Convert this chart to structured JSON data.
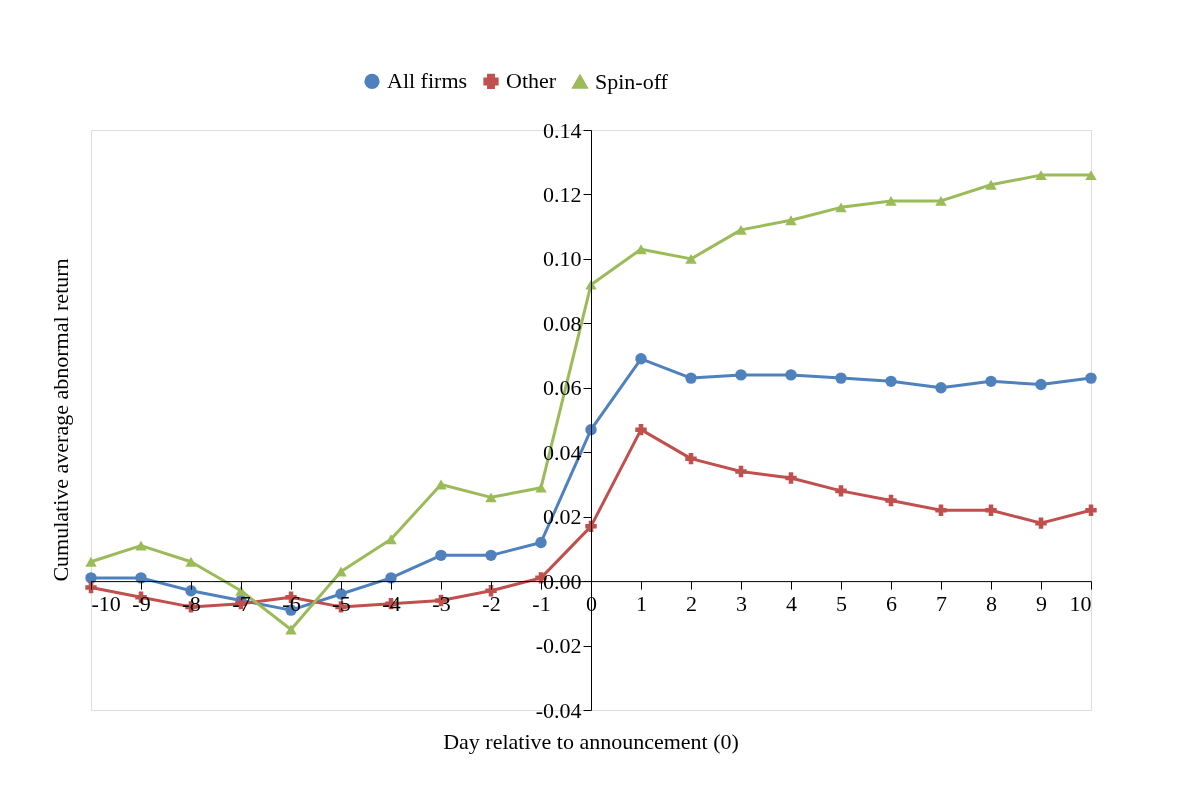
{
  "chart_data": {
    "type": "line",
    "xlabel": "Day relative to announcement (0)",
    "ylabel": "Cumulative average abnormal return",
    "x": [
      -10,
      -9,
      -8,
      -7,
      -6,
      -5,
      -4,
      -3,
      -2,
      -1,
      0,
      1,
      2,
      3,
      4,
      5,
      6,
      7,
      8,
      9,
      10
    ],
    "series": [
      {
        "name": "All firms",
        "color": "#4f81bd",
        "marker": "circle",
        "values": [
          0.001,
          0.001,
          -0.003,
          -0.006,
          -0.009,
          -0.004,
          0.001,
          0.008,
          0.008,
          0.012,
          0.047,
          0.069,
          0.063,
          0.064,
          0.064,
          0.063,
          0.062,
          0.06,
          0.062,
          0.061,
          0.063
        ]
      },
      {
        "name": "Other",
        "color": "#c0504d",
        "marker": "cross",
        "values": [
          -0.002,
          -0.005,
          -0.008,
          -0.007,
          -0.005,
          -0.008,
          -0.007,
          -0.006,
          -0.003,
          0.001,
          0.017,
          0.047,
          0.038,
          0.034,
          0.032,
          0.028,
          0.025,
          0.022,
          0.022,
          0.018,
          0.022
        ]
      },
      {
        "name": "Spin-off",
        "color": "#9bbb59",
        "marker": "triangle",
        "values": [
          0.006,
          0.011,
          0.006,
          -0.003,
          -0.015,
          0.003,
          0.013,
          0.03,
          0.026,
          0.029,
          0.092,
          0.103,
          0.1,
          0.109,
          0.112,
          0.116,
          0.118,
          0.118,
          0.123,
          0.126,
          0.126
        ]
      }
    ],
    "xlim": [
      -10,
      10
    ],
    "xticks": [
      -10,
      -9,
      -8,
      -7,
      -6,
      -5,
      -4,
      -3,
      -2,
      -1,
      0,
      1,
      2,
      3,
      4,
      5,
      6,
      7,
      8,
      9,
      10
    ],
    "ylim": [
      -0.04,
      0.14
    ],
    "yticks": [
      -0.04,
      -0.02,
      {
        "value": 0,
        "label": "0.00"
      },
      0.02,
      0.04,
      0.06,
      0.08,
      {
        "value": 0.1,
        "label": "0.10"
      },
      0.12,
      0.14
    ],
    "legend": "top",
    "grid": false,
    "line_style": "solid"
  }
}
